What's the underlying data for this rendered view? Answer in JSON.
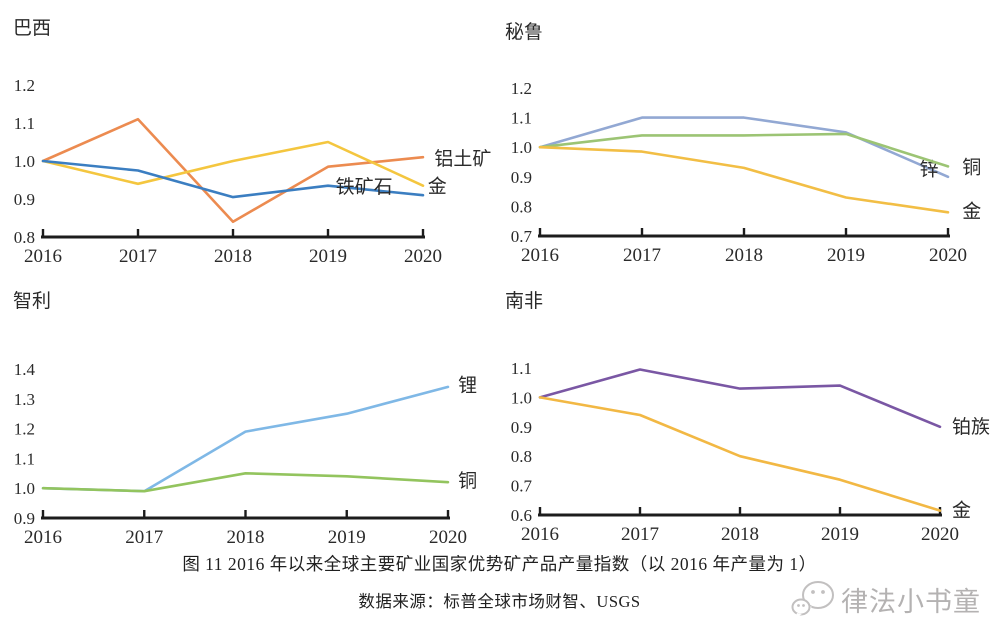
{
  "figure": {
    "caption_line1": "图 11 2016 年以来全球主要矿业国家优势矿产品产量指数（以 2016 年产量为 1）",
    "caption_line2": "数据来源：标普全球市场财智、USGS"
  },
  "watermark": {
    "icon": "wechat-mascot-icon",
    "text": "律法小书童"
  },
  "chart_data": [
    {
      "type": "line",
      "title": "巴西",
      "x": [
        2016,
        2017,
        2018,
        2019,
        2020
      ],
      "xlabel": "",
      "ylabel": "",
      "ylim": [
        0.8,
        1.2
      ],
      "yticks": [
        0.8,
        0.9,
        1.0,
        1.1,
        1.2
      ],
      "grid": false,
      "legend_position": "line-end-labels",
      "series": [
        {
          "name": "铝土矿",
          "color": "#EC8B50",
          "values": [
            1.0,
            1.11,
            0.84,
            0.985,
            1.01
          ],
          "label": {
            "x": 2020.12,
            "y": 1.005
          }
        },
        {
          "name": "金",
          "color": "#F4C63F",
          "values": [
            1.0,
            0.94,
            1.0,
            1.05,
            0.935
          ],
          "label": {
            "x": 2020.05,
            "y": 0.933
          }
        },
        {
          "name": "铁矿石",
          "color": "#3B7EC1",
          "values": [
            1.0,
            0.975,
            0.905,
            0.935,
            0.91
          ],
          "label": {
            "x": 2019.08,
            "y": 0.932
          }
        }
      ]
    },
    {
      "type": "line",
      "title": "秘鲁",
      "x": [
        2016,
        2017,
        2018,
        2019,
        2020
      ],
      "xlabel": "",
      "ylabel": "",
      "ylim": [
        0.7,
        1.2
      ],
      "yticks": [
        0.7,
        0.8,
        0.9,
        1.0,
        1.1,
        1.2
      ],
      "grid": false,
      "legend_position": "line-end-labels",
      "series": [
        {
          "name": "锌",
          "color": "#92A8D3",
          "values": [
            1.0,
            1.1,
            1.1,
            1.05,
            0.9
          ],
          "label": {
            "x": 2019.72,
            "y": 0.925
          }
        },
        {
          "name": "铜",
          "color": "#9CC474",
          "values": [
            1.0,
            1.04,
            1.04,
            1.045,
            0.935
          ],
          "label": {
            "x": 2020.14,
            "y": 0.932
          }
        },
        {
          "name": "金",
          "color": "#F2BE45",
          "values": [
            1.0,
            0.985,
            0.93,
            0.83,
            0.78
          ],
          "label": {
            "x": 2020.14,
            "y": 0.783
          }
        }
      ]
    },
    {
      "type": "line",
      "title": "智利",
      "x": [
        2016,
        2017,
        2018,
        2019,
        2020
      ],
      "xlabel": "",
      "ylabel": "",
      "ylim": [
        0.9,
        1.4
      ],
      "yticks": [
        0.9,
        1.0,
        1.1,
        1.2,
        1.3,
        1.4
      ],
      "grid": false,
      "legend_position": "line-end-labels",
      "series": [
        {
          "name": "锂",
          "color": "#7FB8E6",
          "values": [
            1.0,
            0.99,
            1.19,
            1.25,
            1.34
          ],
          "label": {
            "x": 2020.1,
            "y": 1.345
          }
        },
        {
          "name": "铜",
          "color": "#93C45E",
          "values": [
            1.0,
            0.99,
            1.05,
            1.04,
            1.02
          ],
          "label": {
            "x": 2020.1,
            "y": 1.025
          }
        }
      ]
    },
    {
      "type": "line",
      "title": "南非",
      "x": [
        2016,
        2017,
        2018,
        2019,
        2020
      ],
      "xlabel": "",
      "ylabel": "",
      "ylim": [
        0.6,
        1.1
      ],
      "yticks": [
        0.6,
        0.7,
        0.8,
        0.9,
        1.0,
        1.1
      ],
      "grid": false,
      "legend_position": "line-end-labels",
      "series": [
        {
          "name": "铂族",
          "color": "#7A57A4",
          "values": [
            1.0,
            1.095,
            1.03,
            1.04,
            0.9
          ],
          "label": {
            "x": 2020.12,
            "y": 0.9
          }
        },
        {
          "name": "金",
          "color": "#F2B844",
          "values": [
            1.0,
            0.94,
            0.8,
            0.72,
            0.615
          ],
          "label": {
            "x": 2020.12,
            "y": 0.615
          }
        }
      ]
    }
  ]
}
